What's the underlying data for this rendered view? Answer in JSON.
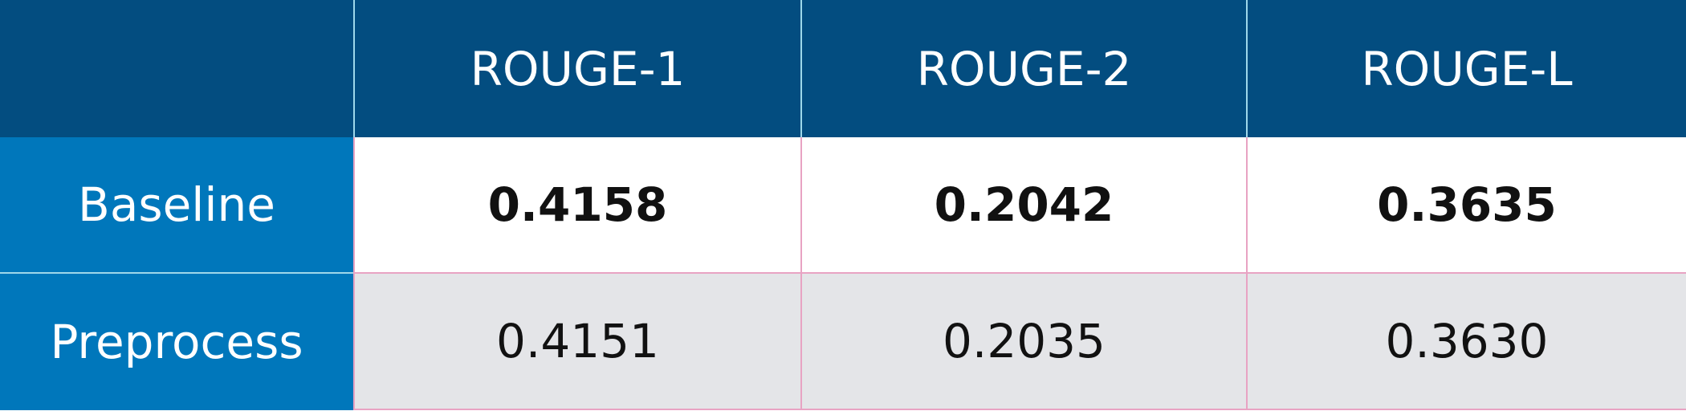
{
  "table": {
    "columns": [
      "",
      "ROUGE-1",
      "ROUGE-2",
      "ROUGE-L"
    ],
    "rows": [
      [
        "Baseline",
        "0.4158",
        "0.2042",
        "0.3635"
      ],
      [
        "Preprocess",
        "0.4151",
        "0.2035",
        "0.3630"
      ]
    ]
  }
}
